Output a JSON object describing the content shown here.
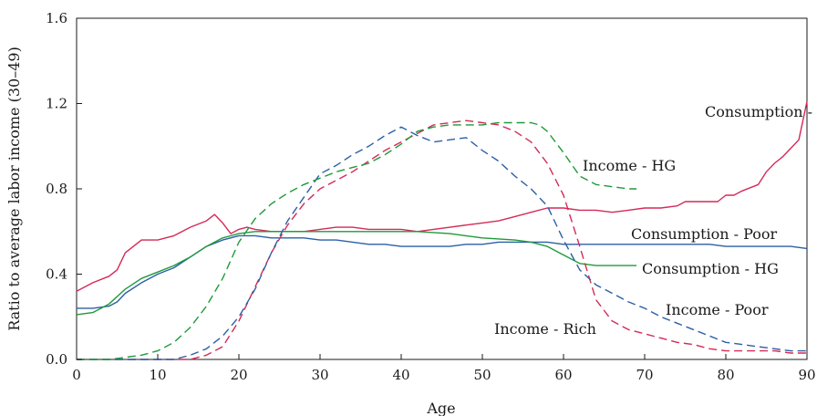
{
  "chart_data": {
    "type": "line",
    "title": "",
    "xlabel": "Age",
    "ylabel": "Ratio to average labor income (30–49)",
    "xlim": [
      0,
      90
    ],
    "ylim": [
      0,
      1.6
    ],
    "x_ticks": [
      0,
      10,
      20,
      30,
      40,
      50,
      60,
      70,
      80,
      90
    ],
    "y_ticks": [
      0.0,
      0.4,
      0.8,
      1.2,
      1.6
    ],
    "y_tick_labels": [
      "0.0",
      "0.4",
      "0.8",
      "1.2",
      "1.6"
    ],
    "grid": false,
    "legend": "none (series labeled directly on the plot)",
    "series": [
      {
        "name": "Consumption - Rich",
        "color": "#d42a57",
        "style": "solid",
        "x": [
          0,
          2,
          4,
          5,
          6,
          7,
          8,
          9,
          10,
          12,
          14,
          16,
          17,
          18,
          19,
          20,
          21,
          22,
          24,
          26,
          28,
          30,
          32,
          34,
          36,
          38,
          40,
          42,
          44,
          46,
          48,
          50,
          52,
          54,
          56,
          58,
          60,
          62,
          64,
          66,
          68,
          70,
          72,
          74,
          75,
          77,
          79,
          80,
          81,
          82,
          84,
          85,
          86,
          87,
          88,
          89,
          90
        ],
        "values": [
          0.32,
          0.36,
          0.39,
          0.42,
          0.5,
          0.53,
          0.56,
          0.56,
          0.56,
          0.58,
          0.62,
          0.65,
          0.68,
          0.64,
          0.59,
          0.61,
          0.62,
          0.61,
          0.6,
          0.6,
          0.6,
          0.61,
          0.62,
          0.62,
          0.61,
          0.61,
          0.61,
          0.6,
          0.61,
          0.62,
          0.63,
          0.64,
          0.65,
          0.67,
          0.69,
          0.71,
          0.71,
          0.7,
          0.7,
          0.69,
          0.7,
          0.71,
          0.71,
          0.72,
          0.74,
          0.74,
          0.74,
          0.77,
          0.77,
          0.79,
          0.82,
          0.88,
          0.92,
          0.95,
          0.99,
          1.03,
          1.21
        ]
      },
      {
        "name": "Consumption - Poor",
        "color": "#2b5fa6",
        "style": "solid",
        "x": [
          0,
          2,
          4,
          5,
          6,
          8,
          10,
          12,
          14,
          16,
          18,
          20,
          22,
          24,
          26,
          28,
          30,
          32,
          34,
          36,
          38,
          40,
          42,
          44,
          46,
          48,
          50,
          52,
          54,
          56,
          58,
          60,
          62,
          64,
          66,
          68,
          70,
          72,
          74,
          76,
          78,
          80,
          82,
          84,
          86,
          88,
          90
        ],
        "values": [
          0.24,
          0.24,
          0.25,
          0.27,
          0.31,
          0.36,
          0.4,
          0.43,
          0.48,
          0.53,
          0.56,
          0.58,
          0.58,
          0.57,
          0.57,
          0.57,
          0.56,
          0.56,
          0.55,
          0.54,
          0.54,
          0.53,
          0.53,
          0.53,
          0.53,
          0.54,
          0.54,
          0.55,
          0.55,
          0.55,
          0.55,
          0.54,
          0.54,
          0.54,
          0.54,
          0.54,
          0.54,
          0.54,
          0.54,
          0.54,
          0.54,
          0.53,
          0.53,
          0.53,
          0.53,
          0.53,
          0.52
        ]
      },
      {
        "name": "Consumption - HG",
        "color": "#1f9a3a",
        "style": "solid",
        "x": [
          0,
          2,
          4,
          6,
          8,
          10,
          12,
          14,
          16,
          18,
          20,
          22,
          24,
          26,
          28,
          30,
          34,
          38,
          42,
          46,
          50,
          54,
          56,
          58,
          60,
          62,
          64,
          66,
          68,
          69
        ],
        "values": [
          0.21,
          0.22,
          0.26,
          0.33,
          0.38,
          0.41,
          0.44,
          0.48,
          0.53,
          0.57,
          0.59,
          0.6,
          0.6,
          0.6,
          0.6,
          0.6,
          0.6,
          0.6,
          0.6,
          0.59,
          0.57,
          0.56,
          0.55,
          0.53,
          0.49,
          0.45,
          0.44,
          0.44,
          0.44,
          0.44
        ]
      },
      {
        "name": "Income - Rich",
        "color": "#d42a57",
        "style": "dashed",
        "x": [
          0,
          10,
          14,
          16,
          18,
          20,
          22,
          24,
          26,
          28,
          30,
          32,
          34,
          36,
          38,
          40,
          42,
          44,
          46,
          48,
          50,
          52,
          54,
          56,
          58,
          60,
          62,
          64,
          66,
          68,
          70,
          72,
          74,
          76,
          78,
          80,
          82,
          84,
          86,
          88,
          90
        ],
        "values": [
          0.0,
          0.0,
          0.0,
          0.02,
          0.06,
          0.18,
          0.34,
          0.5,
          0.63,
          0.73,
          0.8,
          0.84,
          0.88,
          0.93,
          0.98,
          1.02,
          1.06,
          1.1,
          1.11,
          1.12,
          1.11,
          1.1,
          1.07,
          1.02,
          0.92,
          0.77,
          0.53,
          0.28,
          0.18,
          0.14,
          0.12,
          0.1,
          0.08,
          0.07,
          0.05,
          0.04,
          0.04,
          0.04,
          0.04,
          0.03,
          0.03
        ]
      },
      {
        "name": "Income - Poor",
        "color": "#2b5fa6",
        "style": "dashed",
        "x": [
          0,
          8,
          12,
          14,
          16,
          18,
          20,
          22,
          24,
          26,
          28,
          30,
          32,
          34,
          36,
          38,
          40,
          42,
          44,
          46,
          48,
          50,
          52,
          54,
          56,
          58,
          60,
          62,
          64,
          66,
          68,
          70,
          72,
          74,
          76,
          78,
          80,
          82,
          84,
          86,
          88,
          90
        ],
        "values": [
          0.0,
          0.0,
          0.0,
          0.02,
          0.05,
          0.11,
          0.2,
          0.33,
          0.5,
          0.65,
          0.76,
          0.87,
          0.91,
          0.96,
          1.0,
          1.05,
          1.09,
          1.05,
          1.02,
          1.03,
          1.04,
          0.98,
          0.93,
          0.86,
          0.8,
          0.72,
          0.56,
          0.42,
          0.35,
          0.31,
          0.27,
          0.24,
          0.2,
          0.17,
          0.14,
          0.11,
          0.08,
          0.07,
          0.06,
          0.05,
          0.04,
          0.04
        ]
      },
      {
        "name": "Income - HG",
        "color": "#1f9a3a",
        "style": "dashed",
        "x": [
          0,
          4,
          6,
          8,
          10,
          12,
          14,
          16,
          18,
          20,
          22,
          24,
          26,
          28,
          30,
          32,
          34,
          36,
          38,
          40,
          42,
          44,
          46,
          48,
          50,
          52,
          54,
          56,
          57,
          58,
          60,
          62,
          64,
          66,
          68,
          69
        ],
        "values": [
          0.0,
          0.0,
          0.01,
          0.02,
          0.04,
          0.08,
          0.15,
          0.25,
          0.38,
          0.55,
          0.66,
          0.73,
          0.78,
          0.82,
          0.85,
          0.88,
          0.9,
          0.92,
          0.96,
          1.01,
          1.07,
          1.09,
          1.1,
          1.1,
          1.1,
          1.11,
          1.11,
          1.11,
          1.1,
          1.07,
          0.97,
          0.86,
          0.82,
          0.81,
          0.8,
          0.8
        ]
      }
    ]
  }
}
